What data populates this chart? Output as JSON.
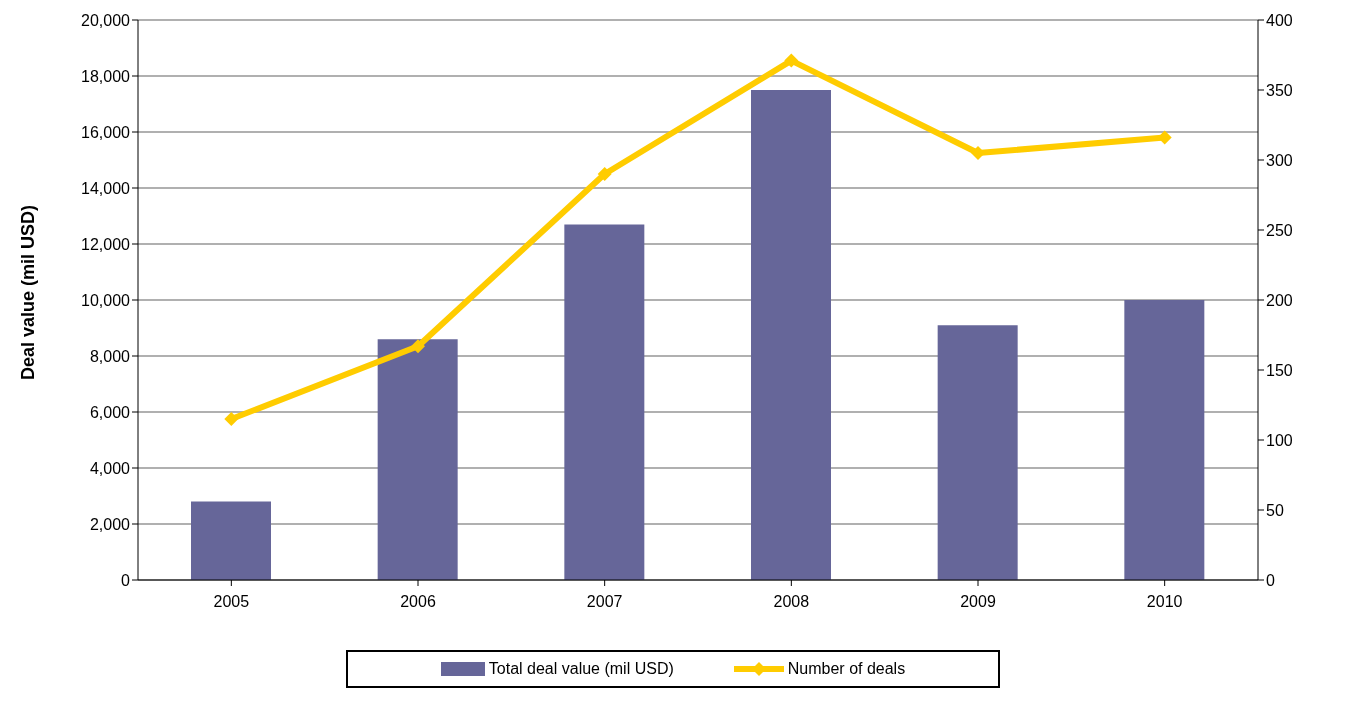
{
  "chart_data": {
    "type": "bar",
    "ylabel": "Deal value (mil USD)",
    "categories": [
      "2005",
      "2006",
      "2007",
      "2008",
      "2009",
      "2010"
    ],
    "series": [
      {
        "name": "Total deal value (mil USD)",
        "color": "#666699",
        "values": [
          2800,
          8600,
          12700,
          17500,
          9100,
          10000
        ]
      },
      {
        "name": "Number of deals",
        "type": "line",
        "axis": "y2",
        "color": "#ffcc00",
        "values": [
          115,
          167,
          290,
          371,
          305,
          316
        ]
      }
    ],
    "ylim": [
      0,
      20000
    ],
    "yticks": [
      0,
      {
        "value": 2000,
        "label": "2,000"
      },
      {
        "value": 4000,
        "label": "4,000"
      },
      {
        "value": 6000,
        "label": "6,000"
      },
      {
        "value": 8000,
        "label": "8,000"
      },
      {
        "value": 10000,
        "label": "10,000"
      },
      {
        "value": 12000,
        "label": "12,000"
      },
      {
        "value": 14000,
        "label": "14,000"
      },
      {
        "value": 16000,
        "label": "16,000"
      },
      {
        "value": 18000,
        "label": "18,000"
      },
      {
        "value": 20000,
        "label": "20,000"
      }
    ],
    "y2lim": [
      0,
      400
    ],
    "y2ticks": [
      0,
      50,
      100,
      150,
      200,
      250,
      300,
      350,
      400
    ],
    "grid": "y",
    "legend": "bottom",
    "marker": "diamond",
    "line_style": "solid"
  }
}
